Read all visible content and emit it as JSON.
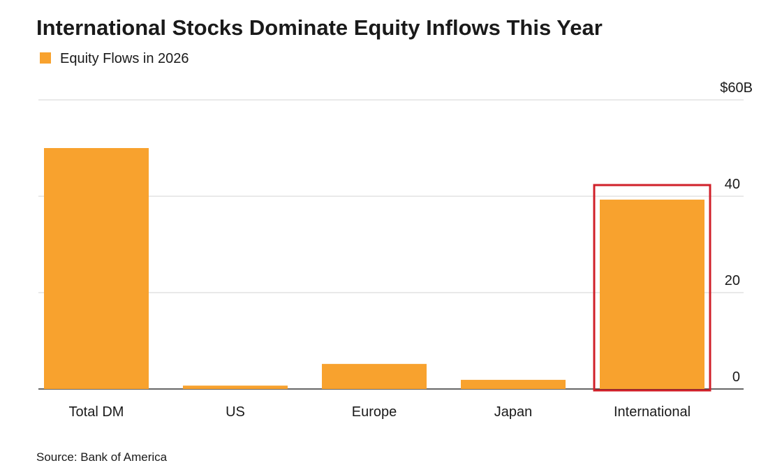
{
  "chart_data": {
    "type": "bar",
    "title": "International Stocks Dominate Equity Inflows This Year",
    "series": [
      {
        "name": "Equity Flows in 2026",
        "color": "#f8a22e",
        "values": [
          50,
          0.7,
          5.2,
          1.9,
          39.3
        ]
      }
    ],
    "categories": [
      "Total DM",
      "US",
      "Europe",
      "Japan",
      "International"
    ],
    "ylim": [
      0,
      60
    ],
    "yticks": [
      0,
      20,
      40,
      {
        "value": 60,
        "label": "$60B"
      }
    ],
    "grid": true,
    "source": "Source: Bank of America"
  }
}
